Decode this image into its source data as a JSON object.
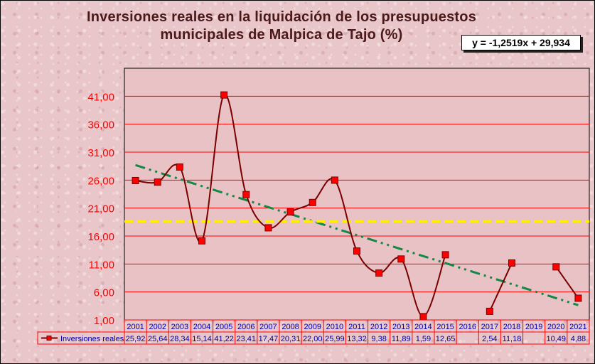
{
  "chart_data": {
    "type": "line",
    "title": "Inversiones reales en la liquidación  de los presupuestos",
    "subtitle": "municipales  de Malpica  de Tajo (%)",
    "equation": "y = -1,2519x + 29,934",
    "categories": [
      "2001",
      "2002",
      "2003",
      "2004",
      "2005",
      "2006",
      "2007",
      "2008",
      "2009",
      "2010",
      "2011",
      "2012",
      "2013",
      "2014",
      "2015",
      "2016",
      "2017",
      "2018",
      "2019",
      "2020",
      "2021"
    ],
    "series": [
      {
        "name": "Inversiones reales",
        "values": [
          25.92,
          25.64,
          28.34,
          15.14,
          41.22,
          23.41,
          17.47,
          20.31,
          22.0,
          25.99,
          13.32,
          9.38,
          11.89,
          1.59,
          12.65,
          null,
          2.54,
          11.18,
          null,
          10.49,
          4.88
        ],
        "labels": [
          "25,92",
          "25,64",
          "28,34",
          "15,14",
          "41,22",
          "23,41",
          "17,47",
          "20,31",
          "22,00",
          "25,99",
          "13,32",
          "9,38",
          "11,89",
          "1,59",
          "12,65",
          "",
          "2,54",
          "11,18",
          "",
          "10,49",
          "4,88"
        ],
        "color": "#7a0000",
        "marker_color": "#ff0000"
      }
    ],
    "average_line": 18.6,
    "trendline": {
      "slope": -1.2519,
      "intercept": 29.934,
      "color": "#118844"
    },
    "ylim": [
      1,
      46
    ],
    "yticks": [
      "41,00",
      "36,00",
      "31,00",
      "26,00",
      "21,00",
      "16,00",
      "11,00",
      "6,00",
      "1,00"
    ],
    "ytick_values": [
      41,
      36,
      31,
      26,
      21,
      16,
      11,
      6,
      1
    ],
    "grid": true,
    "legend": "data-table",
    "colors": {
      "plot_bg": "#e8c2c5",
      "grid": "#ff0000",
      "average": "#ffee00",
      "tick_text": "#ff0000",
      "table_text": "#0000aa"
    }
  }
}
